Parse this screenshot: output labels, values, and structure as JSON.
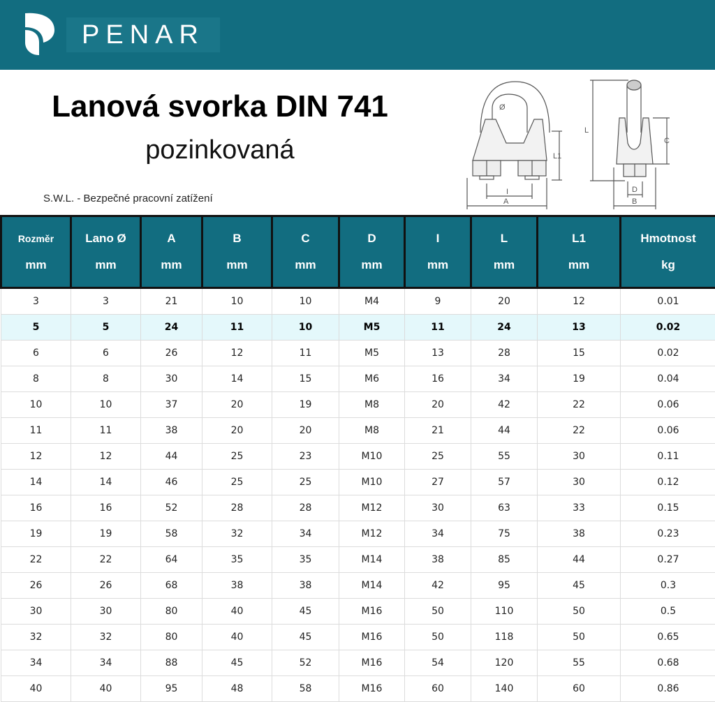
{
  "brand": {
    "name": "PENAR",
    "color": "#126d80"
  },
  "title": "Lanová svorka DIN 741",
  "subtitle": "pozinkovaná",
  "swl_note": "S.W.L. - Bezpečné pracovní zatížení",
  "diagram": {
    "labels": {
      "dia": "Ø",
      "L1": "L1",
      "I": "I",
      "A": "A",
      "L": "L",
      "C": "C",
      "D": "D",
      "B": "B"
    }
  },
  "table": {
    "headers": [
      {
        "top": "Rozměr",
        "unit": "mm"
      },
      {
        "top": "Lano Ø",
        "unit": "mm"
      },
      {
        "top": "A",
        "unit": "mm"
      },
      {
        "top": "B",
        "unit": "mm"
      },
      {
        "top": "C",
        "unit": "mm"
      },
      {
        "top": "D",
        "unit": "mm"
      },
      {
        "top": "I",
        "unit": "mm"
      },
      {
        "top": "L",
        "unit": "mm"
      },
      {
        "top": "L1",
        "unit": "mm"
      },
      {
        "top": "Hmotnost",
        "unit": "kg"
      }
    ],
    "highlight_color": "#e4f8fb",
    "highlighted_row": 1,
    "rows": [
      [
        "3",
        "3",
        "21",
        "10",
        "10",
        "M4",
        "9",
        "20",
        "12",
        "0.01"
      ],
      [
        "5",
        "5",
        "24",
        "11",
        "10",
        "M5",
        "11",
        "24",
        "13",
        "0.02"
      ],
      [
        "6",
        "6",
        "26",
        "12",
        "11",
        "M5",
        "13",
        "28",
        "15",
        "0.02"
      ],
      [
        "8",
        "8",
        "30",
        "14",
        "15",
        "M6",
        "16",
        "34",
        "19",
        "0.04"
      ],
      [
        "10",
        "10",
        "37",
        "20",
        "19",
        "M8",
        "20",
        "42",
        "22",
        "0.06"
      ],
      [
        "11",
        "11",
        "38",
        "20",
        "20",
        "M8",
        "21",
        "44",
        "22",
        "0.06"
      ],
      [
        "12",
        "12",
        "44",
        "25",
        "23",
        "M10",
        "25",
        "55",
        "30",
        "0.11"
      ],
      [
        "14",
        "14",
        "46",
        "25",
        "25",
        "M10",
        "27",
        "57",
        "30",
        "0.12"
      ],
      [
        "16",
        "16",
        "52",
        "28",
        "28",
        "M12",
        "30",
        "63",
        "33",
        "0.15"
      ],
      [
        "19",
        "19",
        "58",
        "32",
        "34",
        "M12",
        "34",
        "75",
        "38",
        "0.23"
      ],
      [
        "22",
        "22",
        "64",
        "35",
        "35",
        "M14",
        "38",
        "85",
        "44",
        "0.27"
      ],
      [
        "26",
        "26",
        "68",
        "38",
        "38",
        "M14",
        "42",
        "95",
        "45",
        "0.3"
      ],
      [
        "30",
        "30",
        "80",
        "40",
        "45",
        "M16",
        "50",
        "110",
        "50",
        "0.5"
      ],
      [
        "32",
        "32",
        "80",
        "40",
        "45",
        "M16",
        "50",
        "118",
        "50",
        "0.65"
      ],
      [
        "34",
        "34",
        "88",
        "45",
        "52",
        "M16",
        "54",
        "120",
        "55",
        "0.68"
      ],
      [
        "40",
        "40",
        "95",
        "48",
        "58",
        "M16",
        "60",
        "140",
        "60",
        "0.86"
      ]
    ]
  }
}
